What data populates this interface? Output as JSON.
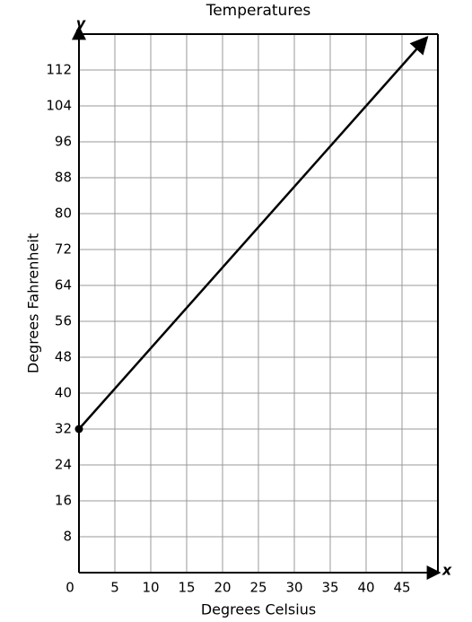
{
  "chart_data": {
    "type": "line",
    "title": "Temperatures",
    "x_label": "Degrees Celsius",
    "y_label": "Degrees Fahrenheit",
    "x_axis_name": "x",
    "y_axis_name": "y",
    "x": [
      0,
      48.5
    ],
    "series": [
      {
        "values": [
          32,
          119.3
        ],
        "color": "#000000"
      }
    ],
    "xlim": [
      0,
      50
    ],
    "ylim": [
      0,
      120
    ],
    "xticks": [
      0,
      5,
      10,
      15,
      20,
      25,
      30,
      35,
      40,
      45
    ],
    "yticks": [
      8,
      16,
      24,
      32,
      40,
      48,
      56,
      64,
      72,
      80,
      88,
      96,
      104,
      112
    ],
    "grid": true
  }
}
